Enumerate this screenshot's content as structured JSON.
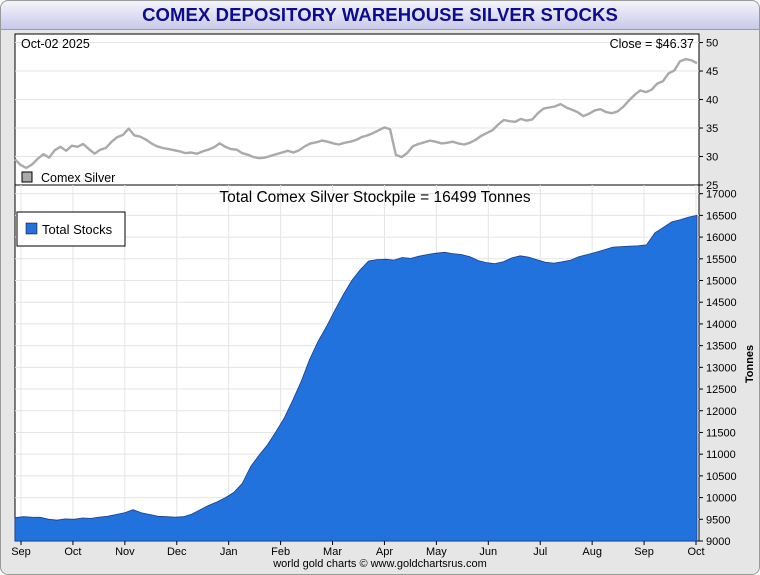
{
  "title": "COMEX DEPOSITORY WAREHOUSE SILVER STOCKS",
  "credit": "world gold charts © www.goldchartsrus.com",
  "chart_data": [
    {
      "type": "line",
      "date_label": "Oct-02  2025",
      "close_label": "Close = $46.37",
      "legend": "Comex Silver",
      "series": [
        {
          "name": "Comex Silver",
          "color": "#aaaaaa",
          "values": [
            29.5,
            28.5,
            28.0,
            28.6,
            29.6,
            30.4,
            29.8,
            31.1,
            31.7,
            31.0,
            31.9,
            31.7,
            32.2,
            31.3,
            30.5,
            31.2,
            31.5,
            32.6,
            33.4,
            33.8,
            34.9,
            33.7,
            33.5,
            33.0,
            32.3,
            31.8,
            31.5,
            31.3,
            31.1,
            30.9,
            30.6,
            30.7,
            30.5,
            30.9,
            31.2,
            31.6,
            32.3,
            31.7,
            31.3,
            31.2,
            30.6,
            30.3,
            29.9,
            29.7,
            29.8,
            30.1,
            30.4,
            30.7,
            31.0,
            30.7,
            31.1,
            31.8,
            32.3,
            32.5,
            32.8,
            32.6,
            32.3,
            32.1,
            32.4,
            32.6,
            32.9,
            33.4,
            33.7,
            34.1,
            34.6,
            35.1,
            34.8,
            30.3,
            29.9,
            30.6,
            31.8,
            32.2,
            32.5,
            32.8,
            32.6,
            32.3,
            32.4,
            32.6,
            32.3,
            32.1,
            32.4,
            32.9,
            33.6,
            34.1,
            34.6,
            35.6,
            36.4,
            36.2,
            36.1,
            36.6,
            36.3,
            36.5,
            37.6,
            38.4,
            38.6,
            38.8,
            39.2,
            38.6,
            38.2,
            37.8,
            37.1,
            37.5,
            38.1,
            38.3,
            37.8,
            37.6,
            37.9,
            38.7,
            39.8,
            40.8,
            41.6,
            41.3,
            41.7,
            42.8,
            43.2,
            44.6,
            45.1,
            46.7,
            47.1,
            46.9,
            46.37
          ]
        }
      ],
      "y_ticks": [
        25,
        30,
        35,
        40,
        45,
        50
      ],
      "ylim": [
        25,
        51.5
      ]
    },
    {
      "type": "area",
      "title": "Total Comex Silver Stockpile = 16499 Tonnes",
      "legend": "Total Stocks",
      "ylabel": "Tonnes",
      "series": [
        {
          "name": "Total Stocks",
          "color": "#2272dd",
          "values": [
            9540,
            9560,
            9550,
            9545,
            9500,
            9480,
            9510,
            9500,
            9530,
            9520,
            9550,
            9570,
            9610,
            9650,
            9720,
            9650,
            9610,
            9570,
            9560,
            9550,
            9560,
            9620,
            9720,
            9820,
            9900,
            10000,
            10120,
            10330,
            10720,
            10980,
            11220,
            11520,
            11840,
            12250,
            12680,
            13190,
            13600,
            13940,
            14320,
            14680,
            15000,
            15250,
            15450,
            15480,
            15490,
            15470,
            15530,
            15510,
            15560,
            15600,
            15630,
            15650,
            15620,
            15600,
            15550,
            15460,
            15410,
            15390,
            15430,
            15520,
            15570,
            15540,
            15480,
            15420,
            15400,
            15430,
            15470,
            15550,
            15600,
            15650,
            15710,
            15770,
            15780,
            15790,
            15800,
            15820,
            16100,
            16220,
            16350,
            16400,
            16460,
            16499
          ]
        }
      ],
      "y_ticks": [
        9000,
        9500,
        10000,
        10500,
        11000,
        11500,
        12000,
        12500,
        13000,
        13500,
        14000,
        14500,
        15000,
        15500,
        16000,
        16500,
        17000
      ],
      "ylim": [
        9000,
        17200
      ],
      "x_ticks": [
        "Sep",
        "Oct",
        "Nov",
        "Dec",
        "Jan",
        "Feb",
        "Mar",
        "Apr",
        "May",
        "Jun",
        "Jul",
        "Aug",
        "Sep",
        "Oct"
      ]
    }
  ]
}
